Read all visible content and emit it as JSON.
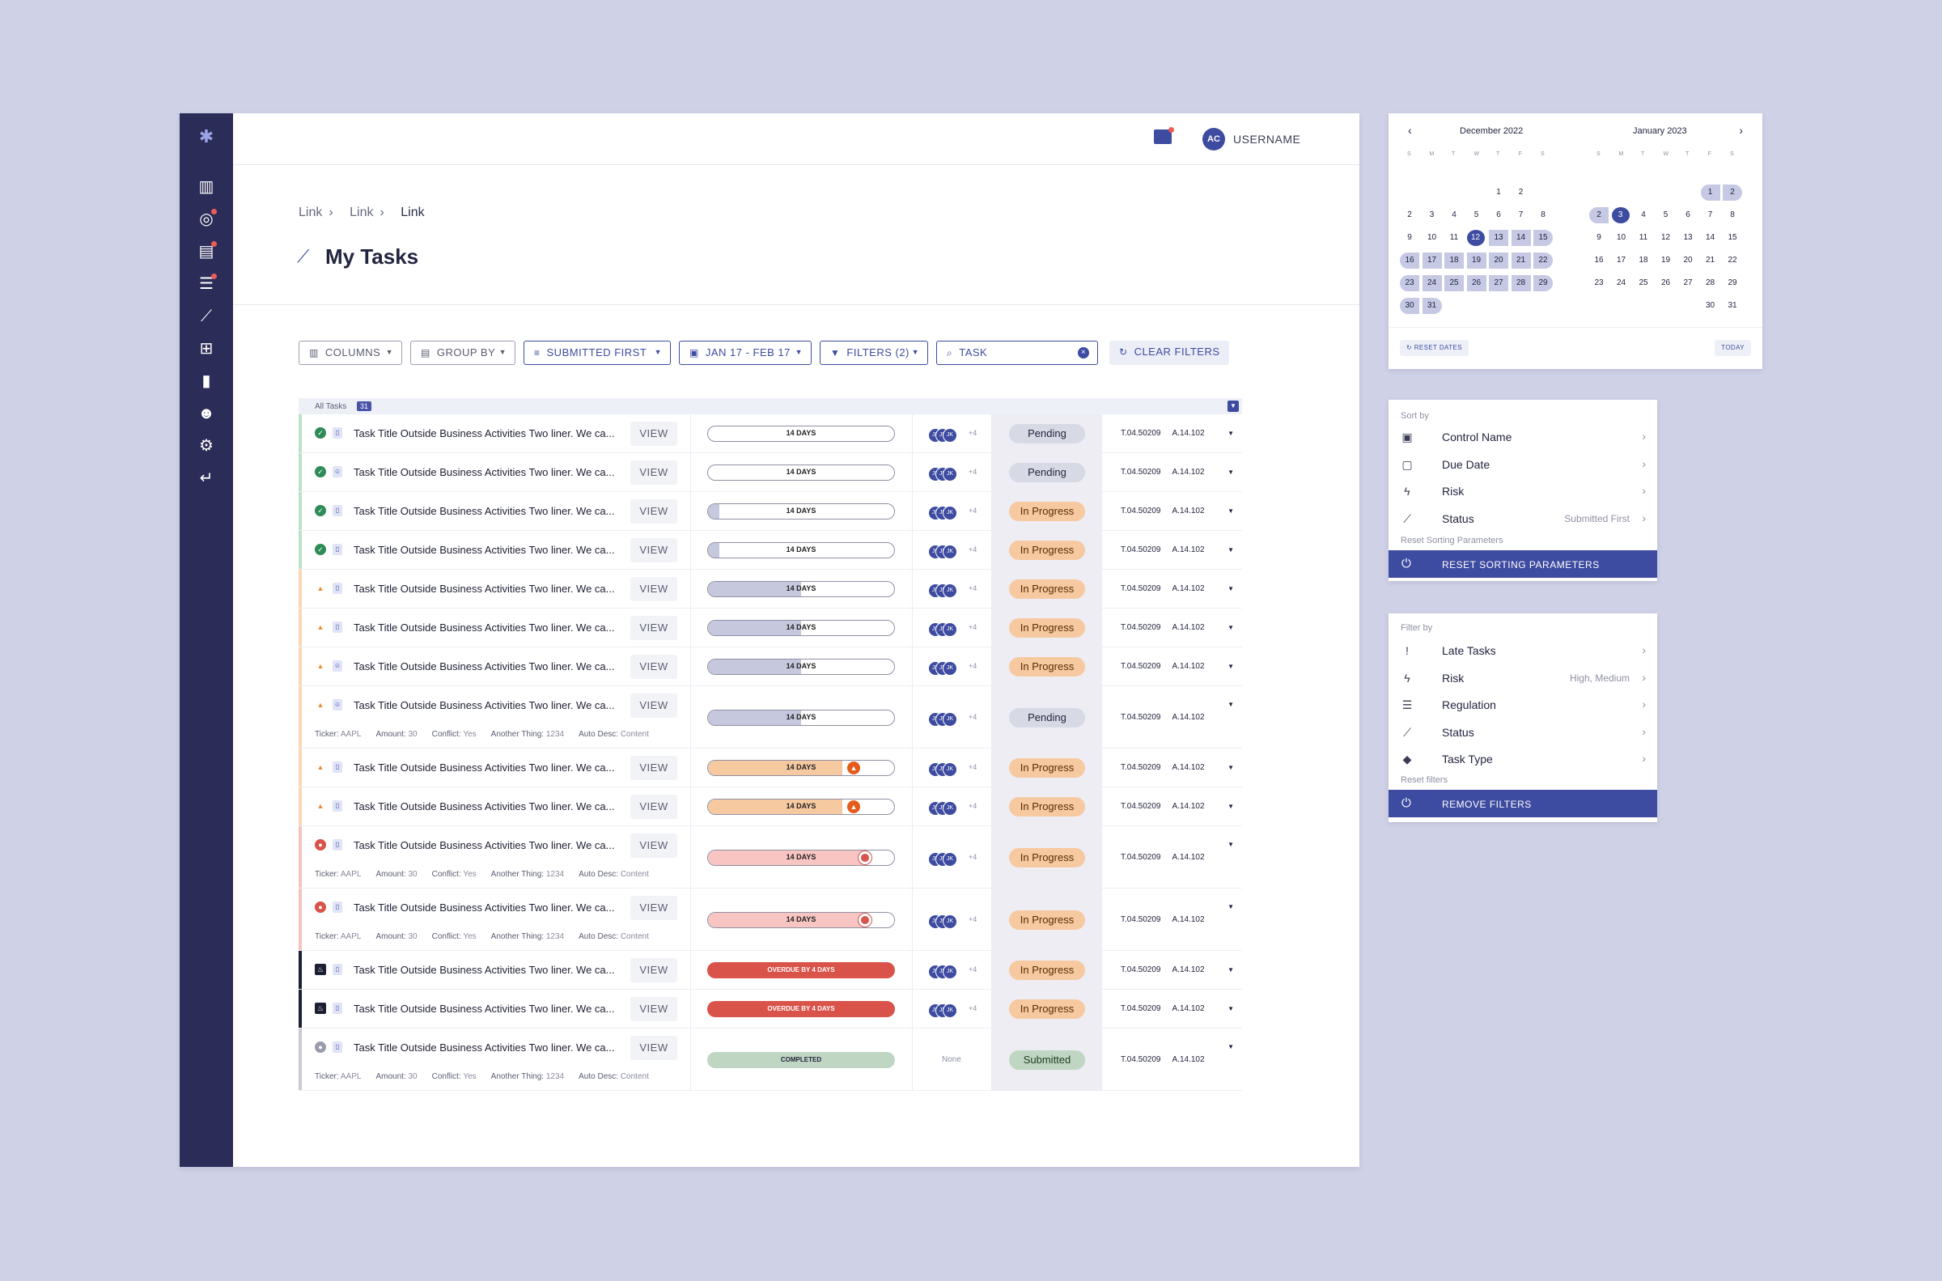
{
  "header": {
    "username": "USERNAME",
    "avatar_initials": "AC"
  },
  "breadcrumb": [
    "Link",
    "Link",
    "Link"
  ],
  "page_title": "My Tasks",
  "toolbar": {
    "columns": "COLUMNS",
    "group_by": "GROUP BY",
    "sort": "SUBMITTED FIRST",
    "date_range": "JAN 17 - FEB 17",
    "filters": "FILTERS (2)",
    "search_value": "TASK",
    "clear": "CLEAR FILTERS"
  },
  "table": {
    "group_label": "All Tasks",
    "count": "31"
  },
  "task_title": "Task Title Outside Business Activities Two liner. We ca...",
  "view_label": "VIEW",
  "meta": {
    "ticker_k": "Ticker:",
    "ticker_v": "AAPL",
    "amount_k": "Amount:",
    "amount_v": "30",
    "conflict_k": "Conflict:",
    "conflict_v": "Yes",
    "another_k": "Another Thing:",
    "another_v": "1234",
    "auto_k": "Auto Desc:",
    "auto_v": "Content"
  },
  "assignee_extra": "+4",
  "assignee_initials": "JK",
  "none_label": "None",
  "code1": "T.04.50209",
  "code2": "A.14.102",
  "rows": [
    {
      "state": "ok",
      "type": "doc",
      "progress": "14 DAYS",
      "fill": 0.0,
      "style": "normal",
      "status": "Pending"
    },
    {
      "state": "ok",
      "type": "person",
      "progress": "14 DAYS",
      "fill": 0.0,
      "style": "normal",
      "status": "Pending"
    },
    {
      "state": "ok",
      "type": "doc",
      "progress": "14 DAYS",
      "fill": 0.06,
      "style": "normal",
      "status": "In Progress"
    },
    {
      "state": "ok",
      "type": "doc",
      "progress": "14 DAYS",
      "fill": 0.06,
      "style": "normal",
      "status": "In Progress"
    },
    {
      "state": "warn",
      "type": "doc",
      "progress": "14 DAYS",
      "fill": 0.5,
      "style": "normal",
      "status": "In Progress"
    },
    {
      "state": "warn",
      "type": "doc",
      "progress": "14 DAYS",
      "fill": 0.5,
      "style": "normal",
      "status": "In Progress"
    },
    {
      "state": "warn",
      "type": "person",
      "progress": "14 DAYS",
      "fill": 0.5,
      "style": "normal",
      "status": "In Progress"
    },
    {
      "state": "warn",
      "type": "person",
      "progress": "14 DAYS",
      "fill": 0.5,
      "style": "normal",
      "status": "Pending",
      "meta": true
    },
    {
      "state": "warn",
      "type": "doc",
      "progress": "14 DAYS",
      "fill": 0.72,
      "style": "orange",
      "status": "In Progress"
    },
    {
      "state": "warn",
      "type": "doc",
      "progress": "14 DAYS",
      "fill": 0.72,
      "style": "orange",
      "status": "In Progress"
    },
    {
      "state": "err",
      "type": "doc",
      "progress": "14 DAYS",
      "fill": 0.84,
      "style": "red",
      "status": "In Progress",
      "meta": true
    },
    {
      "state": "err",
      "type": "doc",
      "progress": "14 DAYS",
      "fill": 0.84,
      "style": "red",
      "status": "In Progress",
      "meta": true
    },
    {
      "state": "over",
      "type": "doc",
      "progress": "OVERDUE BY 4 DAYS",
      "fill": 1.0,
      "style": "overdue",
      "status": "In Progress"
    },
    {
      "state": "over",
      "type": "doc",
      "progress": "OVERDUE BY 4 DAYS",
      "fill": 1.0,
      "style": "overdue",
      "status": "In Progress"
    },
    {
      "state": "done",
      "type": "doc",
      "progress": "COMPLETED",
      "fill": 1.0,
      "style": "done",
      "status": "Submitted",
      "meta": true,
      "none": true
    }
  ],
  "calendar": {
    "left_title": "December 2022",
    "right_title": "January 2023",
    "dow": [
      "S",
      "M",
      "T",
      "W",
      "T",
      "F",
      "S"
    ],
    "left_days": [
      [
        "",
        "",
        "",
        "",
        "1",
        "2",
        ""
      ],
      [
        "2",
        "3",
        "4",
        "5",
        "6",
        "7",
        "8"
      ],
      [
        "9",
        "10",
        "11",
        "12",
        "13",
        "14",
        "15"
      ],
      [
        "16",
        "17",
        "18",
        "19",
        "20",
        "21",
        "22"
      ],
      [
        "23",
        "24",
        "25",
        "26",
        "27",
        "28",
        "29"
      ],
      [
        "30",
        "31",
        "",
        "",
        "",
        "",
        ""
      ]
    ],
    "right_days": [
      [
        "",
        "",
        "",
        "",
        "",
        "1",
        "2"
      ],
      [
        "2",
        "3",
        "4",
        "5",
        "6",
        "7",
        "8"
      ],
      [
        "9",
        "10",
        "11",
        "12",
        "13",
        "14",
        "15"
      ],
      [
        "16",
        "17",
        "18",
        "19",
        "20",
        "21",
        "22"
      ],
      [
        "23",
        "24",
        "25",
        "26",
        "27",
        "28",
        "29"
      ],
      [
        "",
        "",
        "",
        "",
        "",
        "30",
        "31"
      ]
    ],
    "reset": "RESET DATES",
    "today": "TODAY"
  },
  "sort_panel": {
    "header": "Sort by",
    "items": [
      {
        "label": "Control Name",
        "icon": "id-card-icon",
        "value": ""
      },
      {
        "label": "Due Date",
        "icon": "calendar-icon",
        "value": ""
      },
      {
        "label": "Risk",
        "icon": "bolt-icon",
        "value": ""
      },
      {
        "label": "Status",
        "icon": "status-icon",
        "value": "Submitted First"
      }
    ],
    "reset_header": "Reset Sorting Parameters",
    "button": "RESET SORTING PARAMETERS"
  },
  "filter_panel": {
    "header": "Filter by",
    "items": [
      {
        "label": "Late Tasks",
        "icon": "alert-icon",
        "value": ""
      },
      {
        "label": "Risk",
        "icon": "bolt-icon",
        "value": "High, Medium"
      },
      {
        "label": "Regulation",
        "icon": "list-icon",
        "value": ""
      },
      {
        "label": "Status",
        "icon": "status-icon",
        "value": ""
      },
      {
        "label": "Task Type",
        "icon": "tag-icon",
        "value": ""
      }
    ],
    "reset_header": "Reset filters",
    "button": "REMOVE FILTERS"
  },
  "colors": {
    "accent": "#3d4ba0",
    "sidebar": "#2b2c57",
    "ok": "#2e8b57",
    "warn": "#f08a35",
    "err": "#d9534b",
    "over": "#1d1f33",
    "done": "#9a9cab"
  }
}
